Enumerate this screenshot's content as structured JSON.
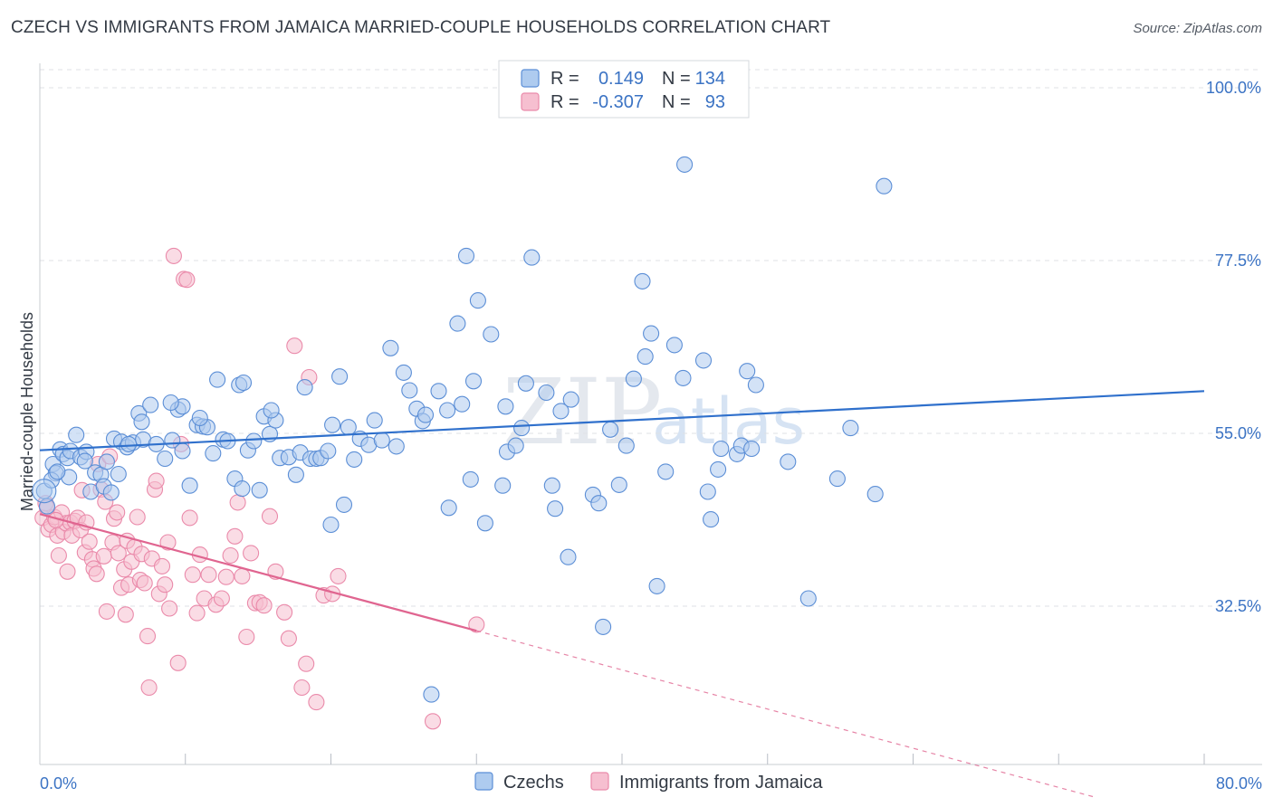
{
  "header": {
    "title": "CZECH VS IMMIGRANTS FROM JAMAICA MARRIED-COUPLE HOUSEHOLDS CORRELATION CHART",
    "source": "Source: ZipAtlas.com"
  },
  "watermark": {
    "zip": "ZIP",
    "atlas": "atlas"
  },
  "colors": {
    "blue_fill": "#aecbef",
    "blue_stroke": "#5b8ed6",
    "blue_line": "#2f70cc",
    "pink_fill": "#f6bfd0",
    "pink_stroke": "#ea8aaa",
    "pink_line": "#e06590",
    "tick_text": "#3b73c4"
  },
  "legend": {
    "rows": [
      {
        "r_label": "R =",
        "r_value": "0.149",
        "n_label": "N =",
        "n_value": "134"
      },
      {
        "r_label": "R =",
        "r_value": "-0.307",
        "n_label": "N =",
        "n_value": "93"
      }
    ]
  },
  "bottom_legend": [
    "Czechs",
    "Immigrants from Jamaica"
  ],
  "chart_data": {
    "type": "scatter",
    "ylabel": "Married-couple Households",
    "xlim": [
      0,
      80
    ],
    "ylim": [
      12,
      102
    ],
    "x_tick_labels": [
      "0.0%",
      "80.0%"
    ],
    "y_ticks": [
      100.0,
      77.5,
      55.0,
      32.5
    ],
    "y_tick_labels": [
      "100.0%",
      "77.5%",
      "55.0%",
      "32.5%"
    ],
    "grid": true,
    "legend_position": "top-center",
    "series": [
      {
        "name": "Czechs",
        "r": 0.149,
        "n": 134,
        "trend": {
          "x0": 0,
          "y0": 52.8,
          "x1": 80,
          "y1": 60.5
        },
        "points": [
          [
            0.3,
            47.5
          ],
          [
            0.5,
            45.5
          ],
          [
            0.9,
            51
          ],
          [
            1.1,
            49.8
          ],
          [
            1.4,
            52.9
          ],
          [
            1.6,
            52.3
          ],
          [
            1.9,
            51.8
          ],
          [
            2.1,
            52.7
          ],
          [
            2.5,
            54.8
          ],
          [
            2.8,
            51.9
          ],
          [
            3.2,
            52.6
          ],
          [
            3.5,
            47.4
          ],
          [
            3.8,
            49.9
          ],
          [
            4.2,
            49.6
          ],
          [
            4.4,
            48.1
          ],
          [
            4.6,
            51.3
          ],
          [
            5.1,
            54.3
          ],
          [
            5.4,
            49.7
          ],
          [
            5.6,
            53.9
          ],
          [
            6.0,
            53.2
          ],
          [
            6.4,
            53.8
          ],
          [
            6.8,
            57.6
          ],
          [
            7.1,
            54.2
          ],
          [
            7.6,
            58.7
          ],
          [
            8.0,
            53.6
          ],
          [
            8.6,
            51.7
          ],
          [
            9.1,
            54.1
          ],
          [
            9.5,
            58.1
          ],
          [
            9.8,
            58.5
          ],
          [
            10.3,
            48.2
          ],
          [
            10.8,
            56.1
          ],
          [
            11.2,
            55.9
          ],
          [
            11.5,
            55.8
          ],
          [
            11.9,
            52.4
          ],
          [
            12.2,
            62.0
          ],
          [
            12.6,
            54.2
          ],
          [
            12.9,
            54.0
          ],
          [
            13.4,
            49.1
          ],
          [
            13.7,
            61.3
          ],
          [
            14.0,
            61.6
          ],
          [
            14.3,
            52.8
          ],
          [
            14.7,
            54.0
          ],
          [
            15.1,
            47.6
          ],
          [
            15.4,
            57.2
          ],
          [
            15.8,
            54.9
          ],
          [
            16.2,
            56.7
          ],
          [
            16.5,
            51.8
          ],
          [
            17.1,
            51.9
          ],
          [
            17.6,
            49.6
          ],
          [
            17.9,
            52.5
          ],
          [
            18.2,
            61.0
          ],
          [
            18.6,
            51.7
          ],
          [
            19.0,
            51.7
          ],
          [
            19.3,
            51.8
          ],
          [
            19.8,
            52.7
          ],
          [
            20.1,
            56.1
          ],
          [
            20.6,
            62.4
          ],
          [
            20.9,
            45.7
          ],
          [
            21.2,
            55.8
          ],
          [
            21.6,
            51.6
          ],
          [
            22.0,
            54.3
          ],
          [
            22.6,
            53.5
          ],
          [
            23.0,
            56.7
          ],
          [
            23.5,
            54.1
          ],
          [
            24.1,
            66.1
          ],
          [
            24.5,
            53.3
          ],
          [
            25.0,
            62.9
          ],
          [
            25.4,
            60.6
          ],
          [
            25.9,
            58.2
          ],
          [
            26.3,
            56.6
          ],
          [
            26.5,
            57.4
          ],
          [
            27.4,
            60.5
          ],
          [
            28.1,
            45.3
          ],
          [
            28.7,
            69.3
          ],
          [
            29.0,
            58.8
          ],
          [
            29.3,
            78.1
          ],
          [
            29.6,
            49.0
          ],
          [
            29.8,
            61.8
          ],
          [
            30.1,
            72.3
          ],
          [
            30.6,
            43.3
          ],
          [
            31.0,
            67.9
          ],
          [
            31.8,
            48.2
          ],
          [
            32.1,
            52.6
          ],
          [
            32.7,
            53.4
          ],
          [
            33.1,
            55.7
          ],
          [
            33.4,
            61.5
          ],
          [
            33.8,
            77.9
          ],
          [
            34.8,
            60.3
          ],
          [
            35.2,
            48.2
          ],
          [
            35.4,
            45.2
          ],
          [
            35.8,
            57.9
          ],
          [
            36.3,
            38.9
          ],
          [
            36.5,
            59.4
          ],
          [
            38.0,
            47.0
          ],
          [
            38.4,
            45.9
          ],
          [
            38.7,
            29.8
          ],
          [
            39.2,
            55.5
          ],
          [
            39.8,
            48.3
          ],
          [
            40.3,
            53.4
          ],
          [
            40.8,
            62.1
          ],
          [
            41.4,
            74.8
          ],
          [
            41.6,
            65.0
          ],
          [
            42.0,
            68.0
          ],
          [
            42.4,
            35.1
          ],
          [
            43.0,
            50.0
          ],
          [
            43.6,
            66.5
          ],
          [
            44.2,
            62.2
          ],
          [
            44.3,
            90.0
          ],
          [
            45.6,
            64.5
          ],
          [
            45.9,
            47.4
          ],
          [
            46.1,
            43.8
          ],
          [
            46.6,
            50.3
          ],
          [
            46.8,
            53.0
          ],
          [
            47.9,
            52.3
          ],
          [
            48.2,
            53.4
          ],
          [
            48.6,
            63.1
          ],
          [
            48.9,
            53.0
          ],
          [
            49.2,
            61.3
          ],
          [
            51.4,
            51.3
          ],
          [
            52.8,
            33.5
          ],
          [
            54.8,
            49.1
          ],
          [
            55.7,
            55.7
          ],
          [
            57.4,
            47.1
          ],
          [
            58.0,
            87.2
          ],
          [
            26.9,
            21.0
          ],
          [
            20.0,
            43.1
          ],
          [
            28.0,
            58.0
          ],
          [
            32.0,
            58.5
          ],
          [
            15.9,
            58.0
          ],
          [
            11.0,
            57.0
          ],
          [
            9.0,
            59.0
          ],
          [
            7.0,
            56.5
          ],
          [
            6.1,
            53.6
          ],
          [
            13.9,
            47.8
          ],
          [
            9.8,
            52.7
          ],
          [
            4.9,
            47.3
          ],
          [
            2.0,
            49.3
          ],
          [
            3.1,
            51.4
          ],
          [
            0.8,
            48.9
          ],
          [
            1.2,
            50.0
          ]
        ]
      },
      {
        "name": "Immigrants from Jamaica",
        "r": -0.307,
        "n": 93,
        "trend": {
          "x0": 0,
          "y0": 44.5,
          "x1": 30,
          "y1": 29.3,
          "dash_x1": 80,
          "dash_y1": 3.8
        },
        "points": [
          [
            0.2,
            44.0
          ],
          [
            0.4,
            45.9
          ],
          [
            0.6,
            42.5
          ],
          [
            0.8,
            43.1
          ],
          [
            1.0,
            44.1
          ],
          [
            1.2,
            41.7
          ],
          [
            1.3,
            39.1
          ],
          [
            1.5,
            44.7
          ],
          [
            1.6,
            42.2
          ],
          [
            1.8,
            43.3
          ],
          [
            1.9,
            37.0
          ],
          [
            2.1,
            43.4
          ],
          [
            2.2,
            41.7
          ],
          [
            2.4,
            43.6
          ],
          [
            2.6,
            44.0
          ],
          [
            2.8,
            42.4
          ],
          [
            2.9,
            47.6
          ],
          [
            3.1,
            39.5
          ],
          [
            3.2,
            43.4
          ],
          [
            3.4,
            40.9
          ],
          [
            3.6,
            38.6
          ],
          [
            3.7,
            37.4
          ],
          [
            3.9,
            36.7
          ],
          [
            4.0,
            51.0
          ],
          [
            4.2,
            47.7
          ],
          [
            4.4,
            39.0
          ],
          [
            4.5,
            46.1
          ],
          [
            4.6,
            31.8
          ],
          [
            4.8,
            52.0
          ],
          [
            5.0,
            40.8
          ],
          [
            5.1,
            43.9
          ],
          [
            5.3,
            44.7
          ],
          [
            5.4,
            39.4
          ],
          [
            5.6,
            34.9
          ],
          [
            5.8,
            37.3
          ],
          [
            5.9,
            31.4
          ],
          [
            6.0,
            41.0
          ],
          [
            6.1,
            35.3
          ],
          [
            6.3,
            38.3
          ],
          [
            6.5,
            40.2
          ],
          [
            6.7,
            44.1
          ],
          [
            6.9,
            35.9
          ],
          [
            7.0,
            39.3
          ],
          [
            7.2,
            35.5
          ],
          [
            7.4,
            28.6
          ],
          [
            7.5,
            21.9
          ],
          [
            7.7,
            38.7
          ],
          [
            7.9,
            47.7
          ],
          [
            8.0,
            48.8
          ],
          [
            8.2,
            34.1
          ],
          [
            8.4,
            37.7
          ],
          [
            8.6,
            35.3
          ],
          [
            8.8,
            40.8
          ],
          [
            8.9,
            32.2
          ],
          [
            9.2,
            78.1
          ],
          [
            9.5,
            25.1
          ],
          [
            9.7,
            53.6
          ],
          [
            9.9,
            75.1
          ],
          [
            10.1,
            75.0
          ],
          [
            10.3,
            44.0
          ],
          [
            10.5,
            36.6
          ],
          [
            10.8,
            31.6
          ],
          [
            11.0,
            39.2
          ],
          [
            11.3,
            33.5
          ],
          [
            11.6,
            36.6
          ],
          [
            12.1,
            32.7
          ],
          [
            12.5,
            33.5
          ],
          [
            12.8,
            36.3
          ],
          [
            13.1,
            39.1
          ],
          [
            13.4,
            41.6
          ],
          [
            13.6,
            46.0
          ],
          [
            13.9,
            36.4
          ],
          [
            14.2,
            28.5
          ],
          [
            14.5,
            39.4
          ],
          [
            14.8,
            32.9
          ],
          [
            15.1,
            33.0
          ],
          [
            15.4,
            32.6
          ],
          [
            15.8,
            44.2
          ],
          [
            16.2,
            37.0
          ],
          [
            16.8,
            31.7
          ],
          [
            17.1,
            28.3
          ],
          [
            17.5,
            66.4
          ],
          [
            18.0,
            21.9
          ],
          [
            18.3,
            25.0
          ],
          [
            18.5,
            62.3
          ],
          [
            19.0,
            20.0
          ],
          [
            19.5,
            33.9
          ],
          [
            20.1,
            34.1
          ],
          [
            20.5,
            36.4
          ],
          [
            27.0,
            17.5
          ],
          [
            30.0,
            30.1
          ],
          [
            0.5,
            45.3
          ],
          [
            1.1,
            43.7
          ]
        ]
      }
    ]
  }
}
